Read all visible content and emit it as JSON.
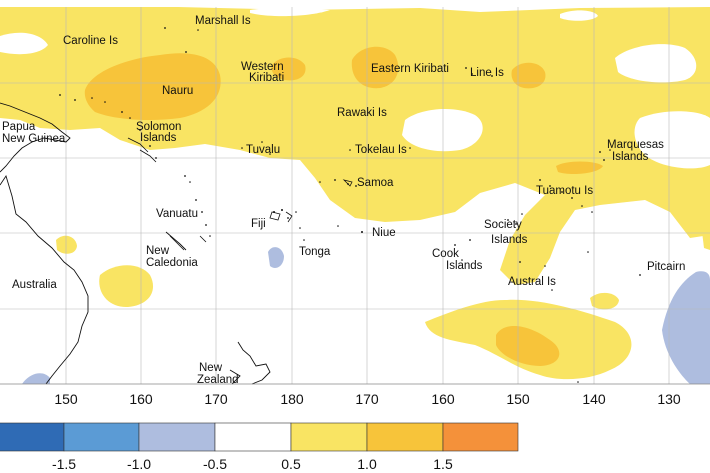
{
  "map": {
    "place_labels": [
      {
        "id": "marshall",
        "text": "Marshall Is"
      },
      {
        "id": "caroline",
        "text": "Caroline Is"
      },
      {
        "id": "western-kiribati-1",
        "text": "Western"
      },
      {
        "id": "western-kiribati-2",
        "text": "Kiribati"
      },
      {
        "id": "eastern-kiribati",
        "text": "Eastern Kiribati"
      },
      {
        "id": "line",
        "text": "Line Is"
      },
      {
        "id": "nauru",
        "text": "Nauru"
      },
      {
        "id": "rawaki",
        "text": "Rawaki Is"
      },
      {
        "id": "papua-1",
        "text": "Papua"
      },
      {
        "id": "papua-2",
        "text": "New Guinea"
      },
      {
        "id": "solomon-1",
        "text": "Solomon"
      },
      {
        "id": "solomon-2",
        "text": "Islands"
      },
      {
        "id": "tuvalu",
        "text": "Tuvalu"
      },
      {
        "id": "tokelau",
        "text": "Tokelau Is"
      },
      {
        "id": "marquesas-1",
        "text": "Marquesas"
      },
      {
        "id": "marquesas-2",
        "text": "Islands"
      },
      {
        "id": "samoa",
        "text": "Samoa"
      },
      {
        "id": "tuamotu",
        "text": "Tuamotu Is"
      },
      {
        "id": "vanuatu",
        "text": "Vanuatu"
      },
      {
        "id": "fiji",
        "text": "Fiji"
      },
      {
        "id": "society-1",
        "text": "Society"
      },
      {
        "id": "society-2",
        "text": "Islands"
      },
      {
        "id": "niue",
        "text": "Niue"
      },
      {
        "id": "new-caledonia-1",
        "text": "New"
      },
      {
        "id": "new-caledonia-2",
        "text": "Caledonia"
      },
      {
        "id": "tonga",
        "text": "Tonga"
      },
      {
        "id": "cook-1",
        "text": "Cook"
      },
      {
        "id": "cook-2",
        "text": "Islands"
      },
      {
        "id": "australia",
        "text": "Australia"
      },
      {
        "id": "austral",
        "text": "Austral Is"
      },
      {
        "id": "pitcairn",
        "text": "Pitcairn"
      },
      {
        "id": "new-zealand-1",
        "text": "New"
      },
      {
        "id": "new-zealand-2",
        "text": "Zealand"
      }
    ],
    "longitude_ticks": [
      "150",
      "160",
      "170",
      "180",
      "170",
      "160",
      "150",
      "140",
      "130"
    ]
  },
  "colorbar": {
    "colors": [
      "#2f6bb5",
      "#5b9bd5",
      "#aebddf",
      "#ffffff",
      "#f9e463",
      "#f7c43a",
      "#f4913a"
    ],
    "tick_labels": [
      "-1.5",
      "-1.0",
      "-0.5",
      "0.5",
      "1.0",
      "1.5"
    ]
  }
}
